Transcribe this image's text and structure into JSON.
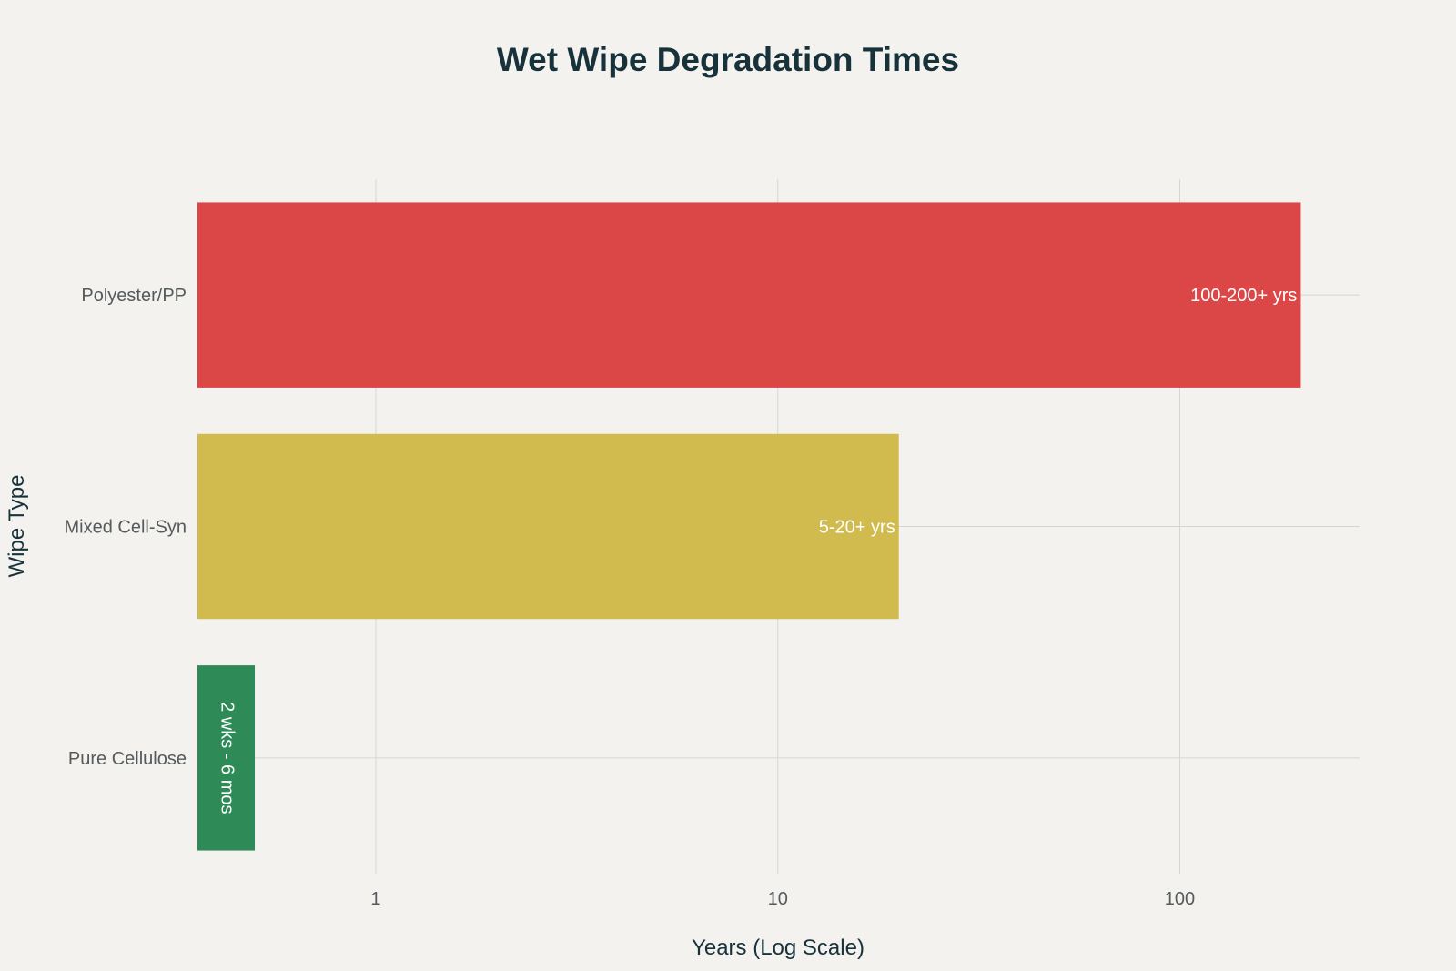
{
  "chart_data": {
    "type": "bar",
    "orientation": "horizontal",
    "title": "Wet Wipe Degradation Times",
    "xlabel": "Years (Log Scale)",
    "ylabel": "Wipe Type",
    "x_scale": "log",
    "xlim": [
      0.36,
      280
    ],
    "x_ticks": [
      1,
      10,
      100
    ],
    "x_tick_labels": [
      "1",
      "10",
      "100"
    ],
    "grid": true,
    "categories": [
      "Polyester/PP",
      "Mixed Cell-Syn",
      "Pure Cellulose"
    ],
    "values": [
      200,
      20,
      0.5
    ],
    "bar_labels": [
      "100-200+ yrs",
      "5-20+ yrs",
      "2 wks - 6 mos"
    ],
    "colors": [
      "#db4647",
      "#d1bb4f",
      "#2e8b57"
    ]
  }
}
